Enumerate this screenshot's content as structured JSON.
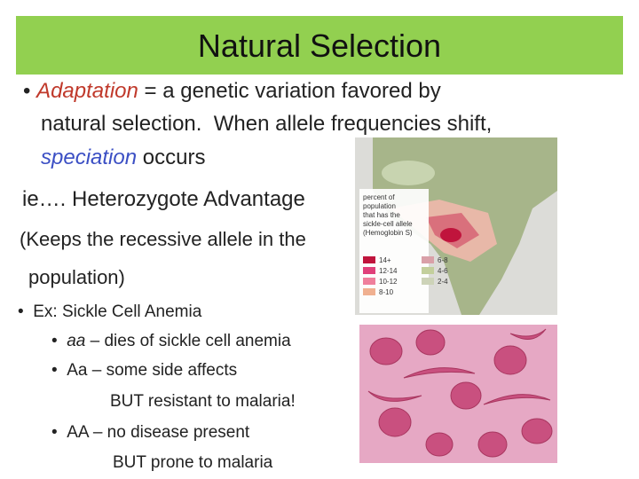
{
  "title": "Natural Selection",
  "bullet": {
    "term": "Adaptation",
    "line1": "= a genetic variation favored by",
    "line2": "natural selection.  When allele frequencies shift,",
    "term2": "speciation",
    "line3": "occurs"
  },
  "example": "ie…. Heterozygote Advantage",
  "note": {
    "line1": "(Keeps the recessive allele in the",
    "line2": "population)"
  },
  "list": {
    "heading": "Ex: Sickle Cell Anemia",
    "items": [
      {
        "genotype": "aa",
        "text": "– dies of sickle cell anemia"
      },
      {
        "genotype": "Aa",
        "text": "– some side affects",
        "cont": "BUT resistant to malaria!"
      },
      {
        "genotype": "AA",
        "text": "– no disease present",
        "cont": "BUT prone to malaria"
      }
    ]
  },
  "map": {
    "legend_title": [
      "percent of",
      "population",
      "that has the",
      "sickle-cell allele",
      "(Hemoglobin S)"
    ],
    "legend": [
      "14+",
      "12-14",
      "10-12",
      "8-10",
      "6-8",
      "4-6",
      "2-4"
    ]
  }
}
